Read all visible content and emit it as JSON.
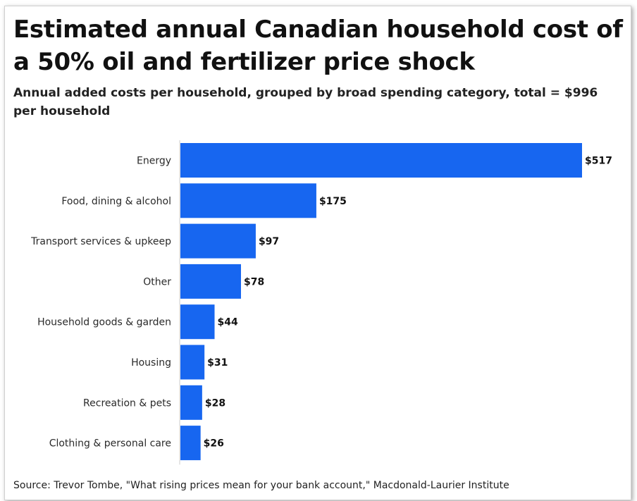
{
  "colors": {
    "bar": "#1766f0",
    "axis": "#cccccc"
  },
  "chart_data": {
    "type": "bar",
    "orientation": "horizontal",
    "title": "Estimated annual Canadian household cost of a 50% oil and fertilizer price shock",
    "subtitle": "Annual added costs per household, grouped by broad spending category, total = $996 per household",
    "categories": [
      "Energy",
      "Food, dining & alcohol",
      "Transport services & upkeep",
      "Other",
      "Household goods & garden",
      "Housing",
      "Recreation & pets",
      "Clothing & personal care"
    ],
    "values": [
      517,
      175,
      97,
      78,
      44,
      31,
      28,
      26
    ],
    "value_labels": [
      "$517",
      "$175",
      "$97",
      "$78",
      "$44",
      "$31",
      "$28",
      "$26"
    ],
    "xlim": [
      0,
      517
    ],
    "grid": false,
    "legend": "none",
    "source": "Source: Trevor Tombe, \"What rising prices mean for your bank account,\" Macdonald-Laurier Institute"
  }
}
